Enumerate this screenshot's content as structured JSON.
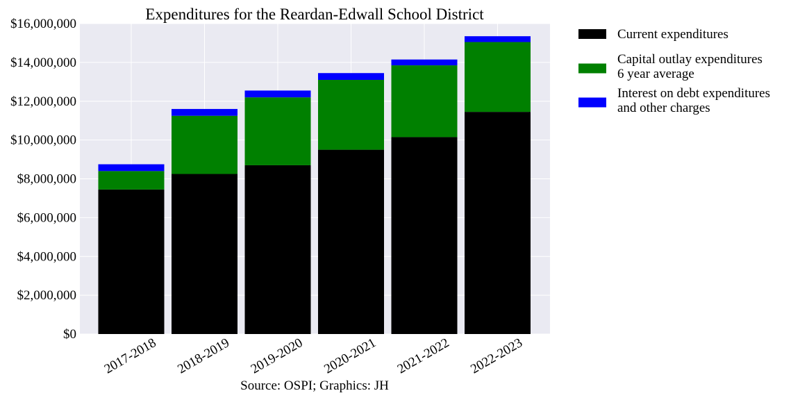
{
  "chart_data": {
    "type": "bar",
    "stacked": true,
    "title": "Expenditures for the Reardan-Edwall School District",
    "xlabel": "Source: OSPI; Graphics: JH",
    "ylabel": "",
    "categories": [
      "2017-2018",
      "2018-2019",
      "2019-2020",
      "2020-2021",
      "2021-2022",
      "2022-2023"
    ],
    "series": [
      {
        "name": "Current expenditures",
        "color": "#000000",
        "values": [
          7450000,
          8250000,
          8700000,
          9500000,
          10150000,
          11450000
        ]
      },
      {
        "name": "Capital outlay expenditures\n6 year average",
        "color": "#008000",
        "values": [
          950000,
          3000000,
          3500000,
          3600000,
          3700000,
          3600000
        ]
      },
      {
        "name": "Interest on debt expenditures\nand other charges",
        "color": "#0000ff",
        "values": [
          350000,
          350000,
          350000,
          350000,
          300000,
          300000
        ]
      }
    ],
    "ylim": [
      0,
      16000000
    ],
    "yticks": [
      0,
      2000000,
      4000000,
      6000000,
      8000000,
      10000000,
      12000000,
      14000000,
      16000000
    ],
    "ytick_labels": [
      "$0",
      "$2,000,000",
      "$4,000,000",
      "$6,000,000",
      "$8,000,000",
      "$10,000,000",
      "$12,000,000",
      "$14,000,000",
      "$16,000,000"
    ],
    "grid": true,
    "legend_position": "outside-right-top",
    "plot_background": "#eaeaf2",
    "grid_color": "#ffffff"
  }
}
